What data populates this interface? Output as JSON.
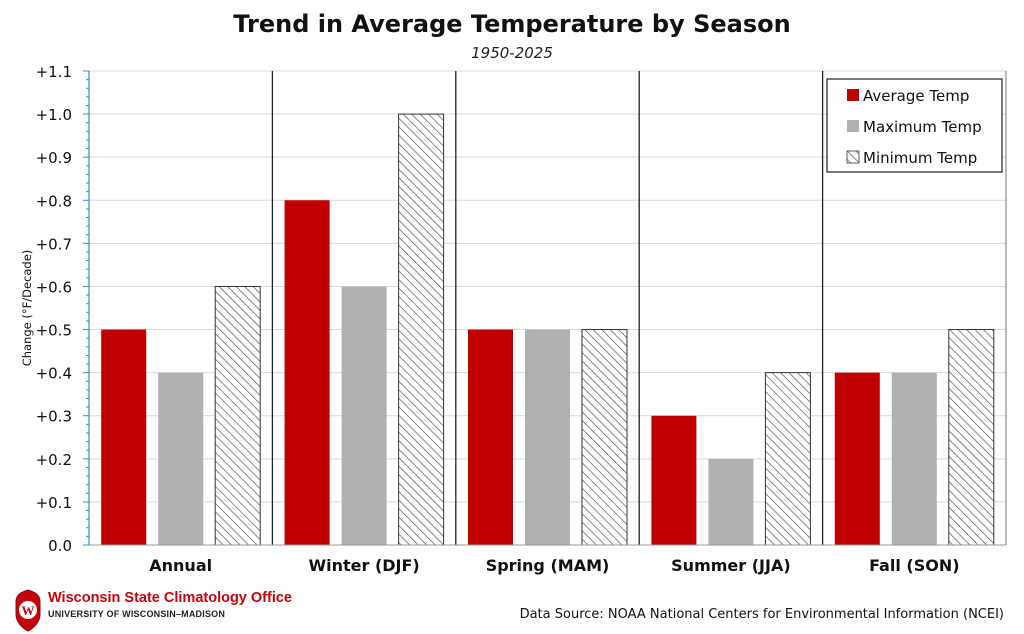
{
  "header": {
    "title": "Trend in Average Temperature by Season",
    "subtitle": "1950-2025"
  },
  "footer": {
    "source": "Data Source: NOAA National Centers for Environmental Information (NCEI)",
    "org_name": "Wisconsin State Climatology Office",
    "org_sub": "UNIVERSITY OF WISCONSIN–MADISON",
    "logo_letter": "W"
  },
  "colors": {
    "average": "#c00000",
    "maximum": "#b0b0b0",
    "minimum_pattern": "#555555",
    "grid": "#d9d9d9",
    "axis_ticks": "#3c8dbc"
  },
  "chart_data": {
    "type": "bar",
    "title": "Trend in Average Temperature by Season",
    "subtitle": "1950-2025",
    "xlabel": "",
    "ylabel": "Change (°F/Decade)",
    "ylim": [
      0,
      1.1
    ],
    "yticks": [
      {
        "value": 0.0,
        "label": "0.0"
      },
      {
        "value": 0.1,
        "label": "+0.1"
      },
      {
        "value": 0.2,
        "label": "+0.2"
      },
      {
        "value": 0.3,
        "label": "+0.3"
      },
      {
        "value": 0.4,
        "label": "+0.4"
      },
      {
        "value": 0.5,
        "label": "+0.5"
      },
      {
        "value": 0.6,
        "label": "+0.6"
      },
      {
        "value": 0.7,
        "label": "+0.7"
      },
      {
        "value": 0.8,
        "label": "+0.8"
      },
      {
        "value": 0.9,
        "label": "+0.9"
      },
      {
        "value": 1.0,
        "label": "+1.0"
      },
      {
        "value": 1.1,
        "label": "+1.1"
      }
    ],
    "grid": true,
    "legend_position": "top-right",
    "categories": [
      "Annual",
      "Winter (DJF)",
      "Spring (MAM)",
      "Summer (JJA)",
      "Fall (SON)"
    ],
    "series": [
      {
        "name": "Average Temp",
        "values": [
          0.5,
          0.8,
          0.5,
          0.3,
          0.4
        ]
      },
      {
        "name": "Maximum Temp",
        "values": [
          0.4,
          0.6,
          0.5,
          0.2,
          0.4
        ]
      },
      {
        "name": "Minimum Temp",
        "values": [
          0.6,
          1.0,
          0.5,
          0.4,
          0.5
        ]
      }
    ]
  }
}
